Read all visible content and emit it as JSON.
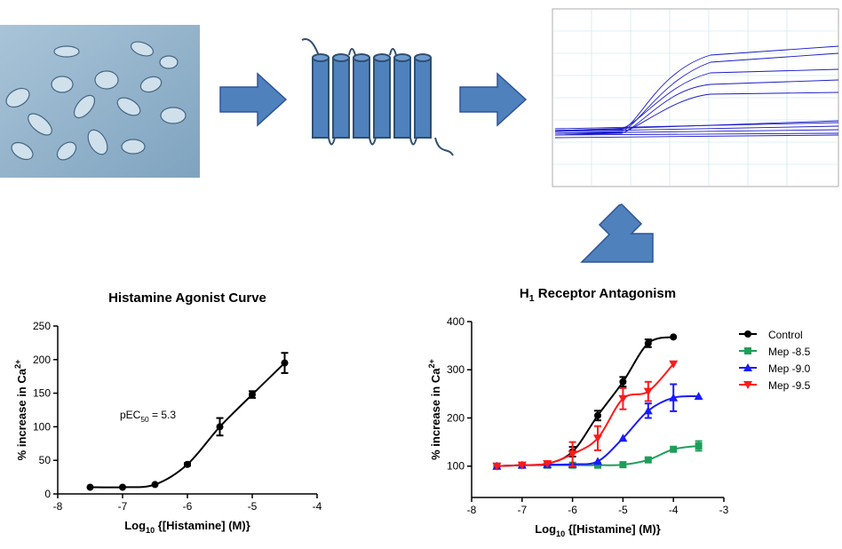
{
  "chart_data": [
    {
      "type": "scatter",
      "title": "Histamine  Agonist  Curve",
      "x_label": {
        "text": "Log",
        "subscript": "10",
        "rest": " {[Histamine] (M)}"
      },
      "y_label": {
        "text": "% increase in Ca",
        "superscript": "2+"
      },
      "annotation": {
        "text": "pEC",
        "subscript": "50",
        "rest": " = 5.3"
      },
      "x": [
        -7.5,
        -7,
        -6.5,
        -6,
        -5.5,
        -5,
        -4.5
      ],
      "series": [
        {
          "color": "#000000",
          "marker": "circle",
          "values": [
            10,
            10,
            14,
            44,
            100,
            148,
            195
          ],
          "errors": [
            null,
            null,
            null,
            2,
            13,
            5,
            15
          ]
        }
      ],
      "xlim": [
        -8,
        -4
      ],
      "xticks": [
        -8,
        -7,
        -6,
        -5,
        -4
      ],
      "ylim": [
        0,
        250
      ],
      "yticks": [
        0,
        50,
        100,
        150,
        200,
        250
      ]
    },
    {
      "type": "scatter",
      "title": {
        "text": "H",
        "subscript": "1",
        "rest": " Receptor  Antagonism"
      },
      "x_label": {
        "text": "Log",
        "subscript": "10",
        "rest": " {[Histamine] (M)}"
      },
      "y_label": {
        "text": "% increase in Ca",
        "superscript": "2+"
      },
      "x": [
        -7.5,
        -7,
        -6.5,
        -6,
        -5.5,
        -5,
        -4.5,
        -4,
        -3.5
      ],
      "series": [
        {
          "name": "Control",
          "color": "#000000",
          "marker": "circle",
          "values": [
            100,
            102,
            105,
            130,
            205,
            275,
            355,
            368,
            null
          ],
          "errors": [
            null,
            null,
            null,
            10,
            10,
            10,
            8,
            null,
            null
          ]
        },
        {
          "name": "Mep -8.5",
          "color": "#1e9e5a",
          "marker": "square",
          "values": [
            100,
            102,
            102,
            102,
            102,
            103,
            113,
            135,
            142
          ],
          "errors": [
            null,
            null,
            null,
            null,
            null,
            null,
            null,
            null,
            10
          ]
        },
        {
          "name": "Mep -9.0",
          "color": "#1a1aff",
          "marker": "triangle-up",
          "values": [
            100,
            102,
            103,
            104,
            110,
            158,
            215,
            242,
            245
          ],
          "errors": [
            null,
            null,
            null,
            null,
            null,
            null,
            15,
            28,
            null
          ]
        },
        {
          "name": "Mep -9.5",
          "color": "#ff1a1a",
          "marker": "triangle-down",
          "values": [
            100,
            102,
            105,
            125,
            158,
            240,
            255,
            312,
            null
          ],
          "errors": [
            null,
            null,
            null,
            25,
            25,
            22,
            20,
            null,
            null
          ]
        }
      ],
      "xlim": [
        -8,
        -3
      ],
      "xticks": [
        -8,
        -7,
        -6,
        -5,
        -4,
        -3
      ],
      "ylim": [
        35,
        400
      ],
      "yticks": [
        100,
        200,
        300,
        400
      ],
      "legend": "right"
    }
  ]
}
